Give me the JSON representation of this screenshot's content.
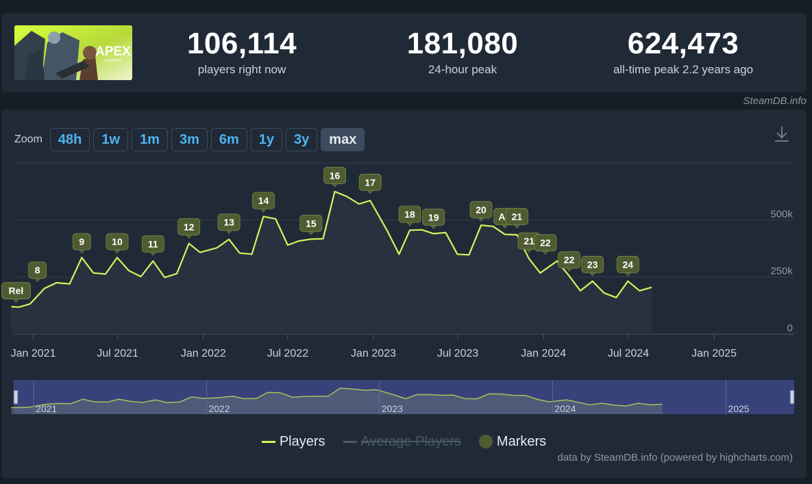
{
  "game": {
    "art_label": "APEX",
    "art_sublabel": "LEGENDS"
  },
  "stats": [
    {
      "value": "106,114",
      "label": "players right now"
    },
    {
      "value": "181,080",
      "label": "24-hour peak"
    },
    {
      "value": "624,473",
      "label": "all-time peak 2.2 years ago"
    }
  ],
  "watermark": "SteamDB.info",
  "zoom": {
    "label": "Zoom",
    "buttons": [
      "48h",
      "1w",
      "1m",
      "3m",
      "6m",
      "1y",
      "3y",
      "max"
    ],
    "active": "max"
  },
  "colors": {
    "line": "#d9f25c",
    "marker": "#4f5b31",
    "background": "#202a37",
    "accent_blue": "#4fb3f0"
  },
  "icons": {
    "download": "download-icon"
  },
  "legend": {
    "players": "Players",
    "average": "Average Players",
    "markers": "Markers"
  },
  "credits": "data by SteamDB.info (powered by highcharts.com)",
  "chart_data": {
    "type": "line",
    "title": "",
    "xlabel": "",
    "ylabel": "",
    "series": [
      {
        "name": "Players",
        "points": [
          [
            "2020-11-15",
            120000
          ],
          [
            "2020-12-01",
            118000
          ],
          [
            "2020-12-25",
            132000
          ],
          [
            "2021-01-25",
            200000
          ],
          [
            "2021-02-20",
            225000
          ],
          [
            "2021-03-20",
            220000
          ],
          [
            "2021-04-15",
            335000
          ],
          [
            "2021-05-10",
            268000
          ],
          [
            "2021-06-05",
            263000
          ],
          [
            "2021-06-30",
            335000
          ],
          [
            "2021-07-25",
            278000
          ],
          [
            "2021-08-20",
            252000
          ],
          [
            "2021-09-15",
            320000
          ],
          [
            "2021-10-10",
            248000
          ],
          [
            "2021-11-05",
            265000
          ],
          [
            "2021-12-01",
            397000
          ],
          [
            "2021-12-25",
            358000
          ],
          [
            "2022-01-30",
            378000
          ],
          [
            "2022-02-25",
            415000
          ],
          [
            "2022-03-20",
            355000
          ],
          [
            "2022-04-15",
            350000
          ],
          [
            "2022-05-10",
            515000
          ],
          [
            "2022-06-05",
            505000
          ],
          [
            "2022-07-01",
            390000
          ],
          [
            "2022-07-25",
            408000
          ],
          [
            "2022-08-20",
            416000
          ],
          [
            "2022-09-15",
            418000
          ],
          [
            "2022-10-10",
            624473
          ],
          [
            "2022-11-05",
            603000
          ],
          [
            "2022-12-01",
            570000
          ],
          [
            "2022-12-25",
            585000
          ],
          [
            "2023-01-30",
            455000
          ],
          [
            "2023-02-25",
            350000
          ],
          [
            "2023-03-20",
            455000
          ],
          [
            "2023-04-15",
            457000
          ],
          [
            "2023-05-10",
            440000
          ],
          [
            "2023-06-05",
            445000
          ],
          [
            "2023-06-30",
            350000
          ],
          [
            "2023-07-25",
            347000
          ],
          [
            "2023-08-20",
            477000
          ],
          [
            "2023-09-15",
            472000
          ],
          [
            "2023-10-10",
            437000
          ],
          [
            "2023-11-05",
            435000
          ],
          [
            "2023-12-01",
            330000
          ],
          [
            "2023-12-25",
            268000
          ],
          [
            "2024-01-30",
            320000
          ],
          [
            "2024-02-25",
            255000
          ],
          [
            "2024-03-20",
            190000
          ],
          [
            "2024-04-15",
            232000
          ],
          [
            "2024-05-10",
            180000
          ],
          [
            "2024-06-05",
            160000
          ],
          [
            "2024-06-30",
            232000
          ],
          [
            "2024-07-25",
            190000
          ],
          [
            "2024-08-20",
            205000
          ]
        ]
      }
    ],
    "markers": [
      [
        "2020-11-25",
        "Rel",
        190000
      ],
      [
        "2021-01-10",
        "8",
        280000
      ],
      [
        "2021-04-15",
        "9",
        405000
      ],
      [
        "2021-06-30",
        "10",
        405000
      ],
      [
        "2021-09-15",
        "11",
        395000
      ],
      [
        "2021-12-01",
        "12",
        470000
      ],
      [
        "2022-02-25",
        "13",
        490000
      ],
      [
        "2022-05-10",
        "14",
        585000
      ],
      [
        "2022-08-20",
        "15",
        485000
      ],
      [
        "2022-10-10",
        "16",
        695000
      ],
      [
        "2022-12-25",
        "17",
        665000
      ],
      [
        "2023-03-20",
        "18",
        525000
      ],
      [
        "2023-05-10",
        "19",
        512000
      ],
      [
        "2023-08-20",
        "20",
        545000
      ],
      [
        "2023-10-10",
        "AL",
        515000
      ],
      [
        "2023-11-05",
        "21",
        515000
      ],
      [
        "2023-12-01",
        "21",
        408000
      ],
      [
        "2024-01-05",
        "22",
        400000
      ],
      [
        "2024-02-25",
        "22",
        325000
      ],
      [
        "2024-04-15",
        "23",
        305000
      ],
      [
        "2024-06-30",
        "24",
        305000
      ]
    ],
    "y_ticks": [
      0,
      250000,
      500000
    ],
    "y_tick_labels": [
      "0",
      "250k",
      "500k"
    ],
    "x_ticks": [
      "2021-01-01",
      "2021-07-01",
      "2022-01-01",
      "2022-07-01",
      "2023-01-01",
      "2023-07-01",
      "2024-01-01",
      "2024-07-01",
      "2025-01-01"
    ],
    "x_tick_labels": [
      "Jan 2021",
      "Jul 2021",
      "Jan 2022",
      "Jul 2022",
      "Jan 2023",
      "Jul 2023",
      "Jan 2024",
      "Jul 2024",
      "Jan 2025"
    ],
    "ylim": [
      0,
      750000
    ],
    "xlim": [
      "2020-11-20",
      "2025-05-25"
    ],
    "navigator": {
      "labels": [
        "2021",
        "2022",
        "2023",
        "2024",
        "2025"
      ],
      "ticks": [
        "2021-01-01",
        "2022-01-01",
        "2023-01-01",
        "2024-01-01",
        "2025-01-01"
      ],
      "selection": "max"
    },
    "grid": true,
    "legend_position": "bottom"
  }
}
